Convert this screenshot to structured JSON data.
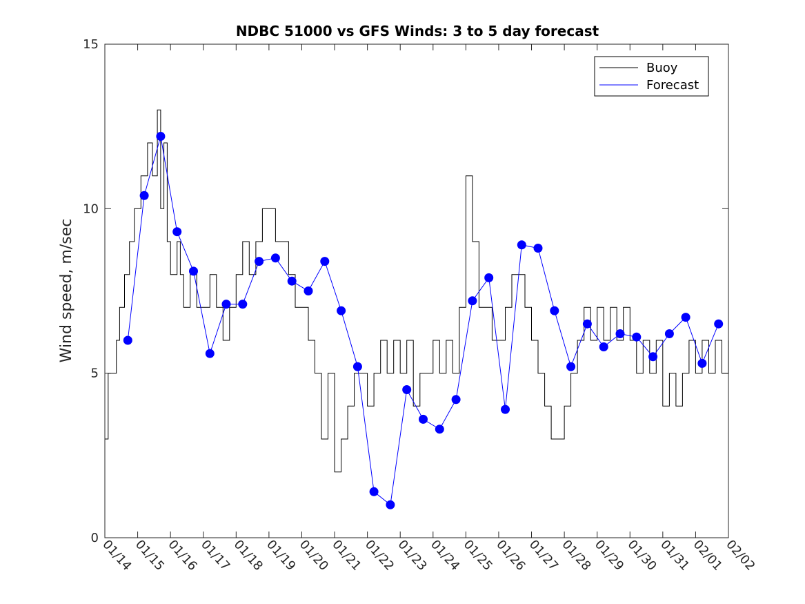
{
  "chart_data": {
    "type": "line",
    "title": "NDBC 51000 vs GFS Winds: 3 to 5 day forecast",
    "xlabel": "",
    "ylabel": "Wind speed, m/sec",
    "xlim": [
      "01/14",
      "02/02"
    ],
    "ylim": [
      0,
      15
    ],
    "x_tick_labels": [
      "01/14",
      "01/15",
      "01/16",
      "01/17",
      "01/18",
      "01/19",
      "01/20",
      "01/21",
      "01/22",
      "01/23",
      "01/24",
      "01/25",
      "01/26",
      "01/27",
      "01/28",
      "01/29",
      "01/30",
      "01/31",
      "02/01",
      "02/02"
    ],
    "y_ticks": [
      0,
      5,
      10,
      15
    ],
    "grid": false,
    "legend_position": "top-right",
    "colors": {
      "buoy": "#000000",
      "forecast": "#0000ff",
      "marker": "#0000ff",
      "axes": "#262626"
    },
    "series": [
      {
        "name": "Buoy",
        "style": "step",
        "x_day": [
          0.0,
          0.1,
          0.2,
          0.35,
          0.45,
          0.6,
          0.75,
          0.9,
          1.0,
          1.1,
          1.2,
          1.3,
          1.45,
          1.6,
          1.7,
          1.8,
          1.9,
          2.0,
          2.1,
          2.2,
          2.3,
          2.4,
          2.6,
          2.8,
          3.0,
          3.2,
          3.4,
          3.6,
          3.8,
          4.0,
          4.2,
          4.4,
          4.6,
          4.8,
          5.0,
          5.2,
          5.4,
          5.6,
          5.8,
          6.0,
          6.2,
          6.4,
          6.6,
          6.8,
          7.0,
          7.2,
          7.4,
          7.6,
          7.8,
          8.0,
          8.2,
          8.4,
          8.6,
          8.8,
          9.0,
          9.2,
          9.4,
          9.6,
          9.8,
          10.0,
          10.2,
          10.4,
          10.6,
          10.8,
          11.0,
          11.2,
          11.4,
          11.6,
          11.8,
          12.0,
          12.2,
          12.4,
          12.6,
          12.8,
          13.0,
          13.2,
          13.4,
          13.6,
          13.8,
          14.0,
          14.2,
          14.4,
          14.6,
          14.8,
          15.0,
          15.2,
          15.4,
          15.6,
          15.8,
          16.0,
          16.2,
          16.4,
          16.6,
          16.8,
          17.0,
          17.2,
          17.4,
          17.6,
          17.8,
          18.0,
          18.2,
          18.4,
          18.6,
          18.8,
          19.0
        ],
        "y": [
          3,
          5,
          5,
          6,
          7,
          8,
          9,
          10,
          10,
          11,
          11,
          12,
          11,
          13,
          10,
          12,
          9,
          8,
          8,
          9,
          8,
          7,
          8,
          7,
          7,
          8,
          7,
          6,
          7,
          8,
          9,
          8,
          9,
          10,
          10,
          9,
          9,
          8,
          7,
          7,
          6,
          5,
          3,
          5,
          2,
          3,
          4,
          5,
          5,
          4,
          5,
          6,
          5,
          6,
          5,
          6,
          4,
          5,
          5,
          6,
          5,
          6,
          5,
          7,
          11,
          9,
          7,
          7,
          6,
          6,
          7,
          8,
          8,
          7,
          6,
          5,
          4,
          3,
          3,
          4,
          5,
          6,
          7,
          6,
          7,
          6,
          7,
          6,
          7,
          6,
          5,
          6,
          5,
          6,
          4,
          5,
          4,
          5,
          6,
          5,
          6,
          5,
          6,
          5,
          6
        ],
        "values": [
          3,
          5,
          5,
          6,
          7,
          8,
          9,
          10,
          10,
          11,
          11,
          12,
          11,
          13,
          10,
          12,
          9,
          8,
          8,
          9,
          8,
          7,
          8,
          7,
          7,
          8,
          7,
          6,
          7,
          8,
          9,
          8,
          9,
          10,
          10,
          9,
          9,
          8,
          7,
          7,
          6,
          5,
          3,
          5,
          2,
          3,
          4,
          5,
          5,
          4,
          5,
          6,
          5,
          6,
          5,
          6,
          4,
          5,
          5,
          6,
          5,
          6,
          5,
          7,
          11,
          9,
          7,
          7,
          6,
          6,
          7,
          8,
          8,
          7,
          6,
          5,
          4,
          3,
          3,
          4,
          5,
          6,
          7,
          6,
          7,
          6,
          7,
          6,
          7,
          6,
          5,
          6,
          5,
          6,
          4,
          5,
          4,
          5,
          6,
          5,
          6,
          5,
          6,
          5,
          6
        ]
      },
      {
        "name": "Forecast",
        "style": "line",
        "x_day": [
          0.7,
          1.2,
          1.7,
          2.2,
          2.7,
          3.2,
          3.7,
          4.2,
          4.7,
          5.2,
          5.7,
          6.2,
          6.7,
          7.2,
          7.7,
          8.2,
          8.7,
          9.2,
          9.7,
          10.2,
          10.7,
          11.2,
          11.7,
          12.2,
          12.7,
          13.2,
          13.7,
          14.2,
          14.7,
          15.2,
          15.7,
          16.2,
          16.7,
          17.2,
          17.7,
          18.2,
          18.7
        ],
        "y": [
          6.0,
          10.4,
          12.2,
          9.3,
          8.1,
          5.6,
          7.1,
          7.1,
          8.4,
          8.5,
          7.8,
          7.5,
          8.4,
          6.9,
          5.2,
          1.4,
          1.0,
          4.5,
          3.6,
          3.3,
          4.2,
          7.2,
          7.9,
          3.9,
          8.9,
          8.8,
          6.9,
          5.2,
          6.5,
          5.8,
          6.2,
          6.1,
          5.5,
          6.2,
          6.7,
          5.3,
          6.5
        ],
        "values": [
          6.0,
          10.4,
          12.2,
          9.3,
          8.1,
          5.6,
          7.1,
          7.1,
          8.4,
          8.5,
          7.8,
          7.5,
          8.4,
          6.9,
          5.2,
          1.4,
          1.0,
          4.5,
          3.6,
          3.3,
          4.2,
          7.2,
          7.9,
          3.9,
          8.9,
          8.8,
          6.9,
          5.2,
          6.5,
          5.8,
          6.2,
          6.1,
          5.5,
          6.2,
          6.7,
          5.3,
          6.5
        ]
      }
    ]
  }
}
